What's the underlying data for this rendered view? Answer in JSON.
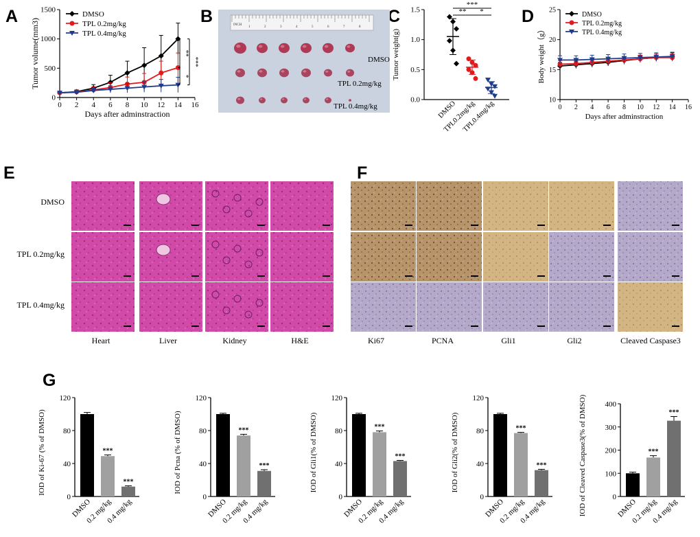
{
  "panels": {
    "A": "A",
    "B": "B",
    "C": "C",
    "D": "D",
    "E": "E",
    "F": "F",
    "G": "G"
  },
  "colors": {
    "dmso": "#000000",
    "tpl02": "#e31a1c",
    "tpl04": "#1f3b8c",
    "bar1": "#000000",
    "bar2": "#a0a0a0",
    "bar3": "#707070",
    "sig": "#000000"
  },
  "chart_data": [
    {
      "id": "A",
      "type": "line",
      "ylabel": "Tumor volume(mm3)",
      "xlabel": "Days after adminstraction",
      "x": [
        0,
        2,
        4,
        6,
        8,
        10,
        12,
        14
      ],
      "xticks": [
        0,
        2,
        4,
        6,
        8,
        10,
        12,
        14,
        16
      ],
      "yticks": [
        0,
        500,
        1000,
        1500
      ],
      "xlim": [
        0,
        16
      ],
      "ylim": [
        0,
        1500
      ],
      "series": [
        {
          "name": "DMSO",
          "values": [
            80,
            100,
            160,
            260,
            420,
            550,
            710,
            1000
          ],
          "err": [
            20,
            30,
            60,
            120,
            200,
            300,
            350,
            270
          ]
        },
        {
          "name": "TPL 0.2mg/kg",
          "values": [
            80,
            95,
            130,
            170,
            230,
            260,
            420,
            510
          ],
          "err": [
            20,
            25,
            50,
            80,
            120,
            150,
            200,
            250
          ]
        },
        {
          "name": "TPL 0.4mg/kg",
          "values": [
            80,
            90,
            120,
            140,
            160,
            180,
            200,
            215
          ],
          "err": [
            15,
            20,
            40,
            60,
            80,
            90,
            110,
            130
          ]
        }
      ],
      "sig": [
        "**",
        "*",
        "***"
      ]
    },
    {
      "id": "C",
      "type": "scatter",
      "ylabel": "Tumor weight(g)",
      "categories": [
        "DMSO",
        "TPL 0.2mg/kg",
        "TPL 0.4mg/kg"
      ],
      "yticks": [
        0.0,
        0.5,
        1.0,
        1.5
      ],
      "ylim": [
        0,
        1.5
      ],
      "groups": [
        {
          "name": "DMSO",
          "mean": 1.05,
          "sd": 0.3,
          "points": [
            1.38,
            1.3,
            1.18,
            0.98,
            0.82,
            0.6
          ]
        },
        {
          "name": "TPL 0.2mg/kg",
          "mean": 0.54,
          "sd": 0.12,
          "points": [
            0.68,
            0.62,
            0.57,
            0.5,
            0.45,
            0.35
          ]
        },
        {
          "name": "TPL 0.4mg/kg",
          "mean": 0.2,
          "sd": 0.1,
          "points": [
            0.33,
            0.26,
            0.22,
            0.18,
            0.12,
            0.06
          ]
        }
      ],
      "sig": [
        "***",
        "**",
        "*"
      ]
    },
    {
      "id": "D",
      "type": "line",
      "ylabel": "Body weight（g）",
      "xlabel": "Days after adminstraction",
      "x": [
        0,
        2,
        4,
        6,
        8,
        10,
        12,
        14
      ],
      "xticks": [
        0,
        2,
        4,
        6,
        8,
        10,
        12,
        14,
        16
      ],
      "yticks": [
        10,
        15,
        20,
        25
      ],
      "xlim": [
        0,
        16
      ],
      "ylim": [
        10,
        25
      ],
      "series": [
        {
          "name": "DMSO",
          "values": [
            15.6,
            15.8,
            16.0,
            16.2,
            16.5,
            16.8,
            17.0,
            17.2
          ],
          "err": [
            0.6,
            0.6,
            0.6,
            0.6,
            0.6,
            0.6,
            0.6,
            0.6
          ]
        },
        {
          "name": "TPL 0.2mg/kg",
          "values": [
            15.9,
            16.0,
            16.2,
            16.4,
            16.6,
            16.8,
            17.0,
            17.0
          ],
          "err": [
            0.6,
            0.6,
            0.6,
            0.6,
            0.6,
            0.6,
            0.6,
            0.6
          ]
        },
        {
          "name": "TPL 0.4mg/kg",
          "values": [
            16.6,
            16.6,
            16.7,
            16.8,
            16.9,
            17.0,
            17.1,
            17.2
          ],
          "err": [
            0.7,
            0.7,
            0.7,
            0.7,
            0.7,
            0.7,
            0.7,
            0.7
          ]
        }
      ]
    },
    {
      "id": "G1",
      "type": "bar",
      "ylabel": "IOD of Ki-67 (% of DMSO)",
      "categories": [
        "DMSO",
        "0.2 mg/kg",
        "0.4 mg/kg"
      ],
      "values": [
        100,
        49,
        12
      ],
      "err": [
        2,
        1.5,
        1
      ],
      "sig": [
        "",
        "***",
        "***"
      ],
      "yticks": [
        0,
        40,
        80,
        120
      ],
      "ylim": [
        0,
        120
      ]
    },
    {
      "id": "G2",
      "type": "bar",
      "ylabel": "IOD of Pcna (% of DMSO)",
      "categories": [
        "DMSO",
        "0.2 mg/kg",
        "0.4 mg/kg"
      ],
      "values": [
        100,
        74,
        31
      ],
      "err": [
        1,
        1.5,
        1.5
      ],
      "sig": [
        "",
        "***",
        "***"
      ],
      "yticks": [
        0,
        40,
        80,
        120
      ],
      "ylim": [
        0,
        120
      ]
    },
    {
      "id": "G3",
      "type": "bar",
      "ylabel": "IOD of Gli1(% of DMSO)",
      "categories": [
        "DMSO",
        "0.2 mg/kg",
        "0.4 mg/kg"
      ],
      "values": [
        100,
        78,
        43
      ],
      "err": [
        1,
        1.5,
        0.8
      ],
      "sig": [
        "",
        "***",
        "***"
      ],
      "yticks": [
        0,
        40,
        80,
        120
      ],
      "ylim": [
        0,
        120
      ]
    },
    {
      "id": "G4",
      "type": "bar",
      "ylabel": "IOD of Gli2(% of DMSO)",
      "categories": [
        "DMSO",
        "0.2 mg/kg",
        "0.4 mg/kg"
      ],
      "values": [
        100,
        77,
        32
      ],
      "err": [
        1,
        0.8,
        1
      ],
      "sig": [
        "",
        "***",
        "***"
      ],
      "yticks": [
        0,
        40,
        80,
        120
      ],
      "ylim": [
        0,
        120
      ]
    },
    {
      "id": "G5",
      "type": "bar",
      "ylabel": "IOD of Cleaved Caspase3(% of DMSO)",
      "categories": [
        "DMSO",
        "0.2 mg/kg",
        "0.4 mg/kg"
      ],
      "values": [
        100,
        168,
        327
      ],
      "err": [
        5,
        8,
        18
      ],
      "sig": [
        "",
        "***",
        "***"
      ],
      "yticks": [
        0,
        100,
        200,
        300,
        400
      ],
      "ylim": [
        0,
        400
      ]
    }
  ],
  "photo_B": {
    "rows": [
      "DMSO",
      "TPL 0.2mg/kg",
      "TPL 0.4mg/kg"
    ],
    "ruler_marks": [
      "1",
      "2",
      "3",
      "4",
      "5",
      "6",
      "7",
      "8"
    ],
    "ruler_label": "INCH"
  },
  "panel_E": {
    "rows": [
      "DMSO",
      "TPL 0.2mg/kg",
      "TPL 0.4mg/kg"
    ],
    "cols": [
      "Heart",
      "Liver",
      "Kidney",
      "H&E"
    ]
  },
  "panel_F": {
    "cols": [
      "Ki67",
      "PCNA",
      "Gli1",
      "Gli2",
      "Cleaved Caspase3"
    ]
  }
}
